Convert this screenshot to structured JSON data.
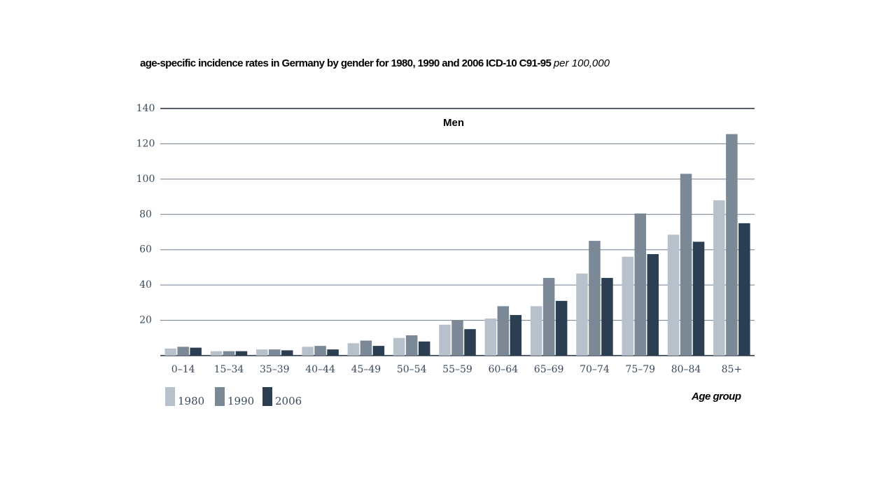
{
  "title": {
    "main": "age-specific incidence rates in Germany by gender for 1980, 1990 and 2006 ICD-10 C91-95",
    "unit": "per 100,000"
  },
  "colors": {
    "1980": "#b7c1cc",
    "1990": "#7b8895",
    "2006": "#2c3e52",
    "grid": "#6e7f90",
    "axis": "#1f2d3d"
  },
  "chart_data": {
    "type": "bar",
    "panel_label": "Men",
    "xlabel": "Age group",
    "ylabel": "",
    "ylim": [
      0,
      140
    ],
    "yticks": [
      20,
      40,
      60,
      80,
      100,
      120,
      140
    ],
    "grid": true,
    "legend_position": "bottom-left",
    "categories": [
      "0–14",
      "15–34",
      "35–39",
      "40–44",
      "45–49",
      "50–54",
      "55–59",
      "60–64",
      "65–69",
      "70–74",
      "75–79",
      "80–84",
      "85+"
    ],
    "series": [
      {
        "name": "1980",
        "values": [
          4,
          2.5,
          3.5,
          5,
          7,
          10,
          17.5,
          21,
          28,
          46.5,
          56,
          68.5,
          88
        ]
      },
      {
        "name": "1990",
        "values": [
          5,
          2.5,
          3.5,
          5.5,
          8.5,
          11.5,
          20,
          28,
          44,
          65,
          80.5,
          103,
          125.5
        ]
      },
      {
        "name": "2006",
        "values": [
          4.5,
          2.5,
          3,
          3.5,
          5.5,
          8,
          15,
          23,
          31,
          44,
          57.5,
          64.5,
          75
        ]
      }
    ]
  }
}
